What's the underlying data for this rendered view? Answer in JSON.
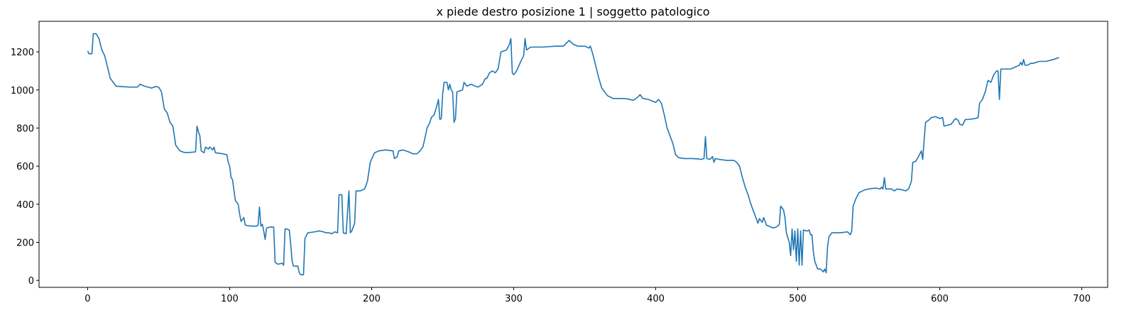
{
  "chart_data": {
    "type": "line",
    "title": "x piede destro posizione 1 | soggetto patologico",
    "color": "#1f77b4",
    "x": [
      0,
      1,
      3,
      4,
      6,
      8,
      10,
      12,
      14,
      16,
      18,
      20,
      25,
      30,
      35,
      37,
      40,
      45,
      48,
      50,
      52,
      54,
      56,
      58,
      60,
      62,
      65,
      68,
      72,
      76,
      77,
      78,
      79,
      80,
      82,
      83,
      85,
      86,
      88,
      89,
      90,
      95,
      98,
      99,
      100,
      101,
      102,
      104,
      106,
      107,
      108,
      109,
      110,
      111,
      115,
      119,
      120,
      121,
      122,
      123,
      124,
      125,
      126,
      128,
      131,
      132,
      134,
      137,
      138,
      139,
      140,
      142,
      143,
      144,
      145,
      148,
      149,
      150,
      152,
      153,
      155,
      160,
      163,
      166,
      168,
      170,
      172,
      174,
      176,
      177,
      179,
      180,
      182,
      184,
      185,
      186,
      188,
      189,
      192,
      195,
      197,
      199,
      202,
      205,
      210,
      215,
      216,
      218,
      219,
      222,
      226,
      229,
      232,
      234,
      236,
      237,
      239,
      241,
      242,
      244,
      246,
      247,
      248,
      249,
      250,
      251,
      253,
      254,
      255,
      256,
      257,
      258,
      259,
      260,
      264,
      265,
      267,
      270,
      273,
      275,
      278,
      280,
      281,
      283,
      285,
      287,
      289,
      291,
      295,
      297,
      298,
      299,
      300,
      302,
      305,
      307,
      308,
      309,
      312,
      320,
      330,
      335,
      337,
      339,
      342,
      345,
      350,
      353,
      354,
      356,
      358,
      360,
      362,
      364,
      366,
      370,
      378,
      382,
      384,
      387,
      389,
      391,
      395,
      398,
      400,
      402,
      404,
      406,
      408,
      410,
      412,
      414,
      416,
      420,
      425,
      430,
      432,
      434,
      435,
      436,
      438,
      440,
      441,
      442,
      445,
      450,
      455,
      457,
      459,
      461,
      463,
      465,
      467,
      469,
      471,
      472,
      473,
      475,
      476,
      478,
      481,
      483,
      486,
      487,
      488,
      490,
      491,
      492,
      494,
      495,
      496,
      497,
      498,
      499,
      500,
      501,
      502,
      503,
      504,
      506,
      507,
      508,
      509,
      510,
      511,
      512,
      514,
      516,
      518,
      519,
      520,
      521,
      522,
      524,
      530,
      535,
      537,
      538,
      539,
      541,
      543,
      547,
      550,
      555,
      558,
      559,
      560,
      561,
      562,
      566,
      568,
      570,
      574,
      576,
      578,
      580,
      581,
      583,
      585,
      587,
      588,
      589,
      590,
      592,
      594,
      597,
      600,
      602,
      603,
      608,
      609,
      611,
      613,
      614,
      616,
      618,
      620,
      625,
      627,
      628,
      630,
      632,
      634,
      636,
      638,
      640,
      641,
      642,
      643,
      646,
      650,
      653,
      656,
      657,
      658,
      659,
      660,
      662,
      664,
      666,
      670,
      675,
      680,
      684
    ],
    "values": [
      1205,
      1190,
      1190,
      1295,
      1295,
      1270,
      1210,
      1180,
      1120,
      1060,
      1040,
      1020,
      1017,
      1015,
      1015,
      1030,
      1020,
      1010,
      1018,
      1015,
      990,
      900,
      880,
      830,
      810,
      710,
      680,
      672,
      672,
      675,
      810,
      780,
      760,
      680,
      670,
      700,
      690,
      700,
      685,
      700,
      670,
      665,
      660,
      620,
      600,
      540,
      530,
      420,
      400,
      350,
      310,
      320,
      330,
      290,
      285,
      285,
      290,
      385,
      285,
      295,
      260,
      215,
      275,
      280,
      280,
      95,
      85,
      90,
      80,
      270,
      270,
      265,
      190,
      100,
      75,
      75,
      40,
      30,
      30,
      220,
      250,
      255,
      260,
      255,
      250,
      250,
      245,
      255,
      250,
      450,
      450,
      250,
      245,
      470,
      250,
      260,
      300,
      470,
      470,
      480,
      520,
      620,
      670,
      680,
      685,
      680,
      640,
      650,
      680,
      685,
      675,
      665,
      665,
      680,
      700,
      730,
      800,
      830,
      855,
      870,
      920,
      950,
      845,
      850,
      980,
      1040,
      1040,
      1000,
      1030,
      1000,
      990,
      830,
      850,
      990,
      1000,
      1040,
      1020,
      1030,
      1020,
      1015,
      1030,
      1060,
      1060,
      1090,
      1100,
      1090,
      1110,
      1200,
      1210,
      1240,
      1270,
      1090,
      1080,
      1100,
      1150,
      1180,
      1270,
      1210,
      1225,
      1225,
      1230,
      1230,
      1245,
      1260,
      1240,
      1230,
      1230,
      1220,
      1230,
      1180,
      1120,
      1060,
      1010,
      990,
      970,
      955,
      955,
      950,
      945,
      960,
      975,
      955,
      950,
      940,
      935,
      950,
      930,
      870,
      800,
      760,
      720,
      660,
      645,
      640,
      640,
      638,
      635,
      640,
      755,
      640,
      635,
      650,
      620,
      640,
      635,
      630,
      630,
      620,
      600,
      540,
      490,
      450,
      400,
      360,
      320,
      300,
      325,
      305,
      330,
      290,
      280,
      275,
      285,
      295,
      390,
      370,
      330,
      250,
      200,
      130,
      270,
      160,
      260,
      100,
      270,
      80,
      260,
      80,
      265,
      260,
      260,
      265,
      240,
      240,
      150,
      100,
      60,
      60,
      45,
      60,
      40,
      180,
      230,
      250,
      250,
      255,
      240,
      260,
      390,
      430,
      460,
      475,
      480,
      485,
      480,
      490,
      480,
      540,
      480,
      480,
      470,
      480,
      475,
      470,
      480,
      520,
      620,
      625,
      650,
      680,
      635,
      740,
      830,
      840,
      855,
      860,
      850,
      855,
      810,
      820,
      830,
      850,
      840,
      820,
      815,
      845,
      845,
      850,
      855,
      930,
      950,
      990,
      1050,
      1040,
      1080,
      1100,
      1100,
      950,
      1110,
      1110,
      1110,
      1120,
      1130,
      1145,
      1130,
      1160,
      1130,
      1130,
      1140,
      1140,
      1150,
      1150,
      1160,
      1170
    ],
    "xlim": [
      -34.2,
      718.2
    ],
    "xticks": [
      0,
      100,
      200,
      300,
      400,
      500,
      600,
      700
    ],
    "ylim": [
      -36.5,
      1360.5
    ],
    "yticks": [
      0,
      200,
      400,
      600,
      800,
      1000,
      1200
    ]
  }
}
